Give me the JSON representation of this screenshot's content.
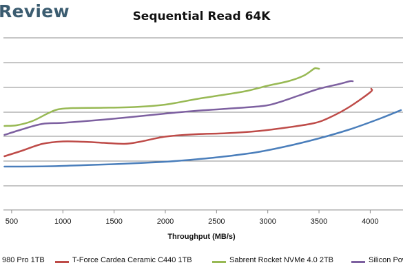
{
  "brand": {
    "text": "Review"
  },
  "chart_data": {
    "type": "line",
    "title": "Sequential Read 64K",
    "xlabel": "Throughput (MB/s)",
    "ylabel": "",
    "x_ticks": [
      500,
      1000,
      1500,
      2000,
      2500,
      3000,
      3500,
      4000
    ],
    "xlim": [
      420,
      4320
    ],
    "grid": "horizontal",
    "legend_position": "bottom",
    "series": [
      {
        "name": "980 Pro 1TB",
        "color": "#4a7ebb",
        "points": [
          [
            430,
            242
          ],
          [
            600,
            242
          ],
          [
            900,
            241.5
          ],
          [
            1200,
            240
          ],
          [
            1500,
            238.5
          ],
          [
            1800,
            236.5
          ],
          [
            2000,
            235
          ],
          [
            2300,
            231.5
          ],
          [
            2600,
            227
          ],
          [
            2900,
            221
          ],
          [
            3200,
            212
          ],
          [
            3500,
            201
          ],
          [
            3800,
            188
          ],
          [
            4100,
            172
          ],
          [
            4300,
            160
          ]
        ]
      },
      {
        "name": "T-Force Cardea Ceramic C440 1TB",
        "color": "#be4b48",
        "points": [
          [
            430,
            227
          ],
          [
            600,
            219
          ],
          [
            800,
            209
          ],
          [
            1000,
            205.5
          ],
          [
            1200,
            206
          ],
          [
            1400,
            207.5
          ],
          [
            1600,
            209
          ],
          [
            1750,
            206
          ],
          [
            2000,
            198.5
          ],
          [
            2300,
            195
          ],
          [
            2600,
            193.5
          ],
          [
            2900,
            190.5
          ],
          [
            3200,
            185
          ],
          [
            3450,
            179
          ],
          [
            3600,
            171
          ],
          [
            3800,
            155
          ],
          [
            4000,
            134
          ],
          [
            4010,
            129
          ]
        ]
      },
      {
        "name": "Sabrent Rocket NVMe 4.0 2TB",
        "color": "#98b954",
        "points": [
          [
            430,
            183
          ],
          [
            550,
            182
          ],
          [
            700,
            176
          ],
          [
            850,
            165
          ],
          [
            950,
            159
          ],
          [
            1100,
            157
          ],
          [
            1400,
            156.5
          ],
          [
            1700,
            155.5
          ],
          [
            2000,
            152
          ],
          [
            2300,
            144
          ],
          [
            2600,
            137
          ],
          [
            2800,
            132
          ],
          [
            3000,
            124.5
          ],
          [
            3200,
            118
          ],
          [
            3350,
            110
          ],
          [
            3450,
            100
          ],
          [
            3470,
            99
          ],
          [
            3500,
            100
          ]
        ]
      },
      {
        "name": "Silicon Power",
        "color": "#7d60a0",
        "points": [
          [
            430,
            196
          ],
          [
            600,
            188
          ],
          [
            800,
            180
          ],
          [
            1000,
            178.5
          ],
          [
            1300,
            175
          ],
          [
            1600,
            171
          ],
          [
            2000,
            165
          ],
          [
            2300,
            161
          ],
          [
            2600,
            158
          ],
          [
            2950,
            154
          ],
          [
            3100,
            149
          ],
          [
            3300,
            139
          ],
          [
            3500,
            129
          ],
          [
            3700,
            122
          ],
          [
            3800,
            118
          ],
          [
            3830,
            118
          ]
        ]
      }
    ]
  }
}
